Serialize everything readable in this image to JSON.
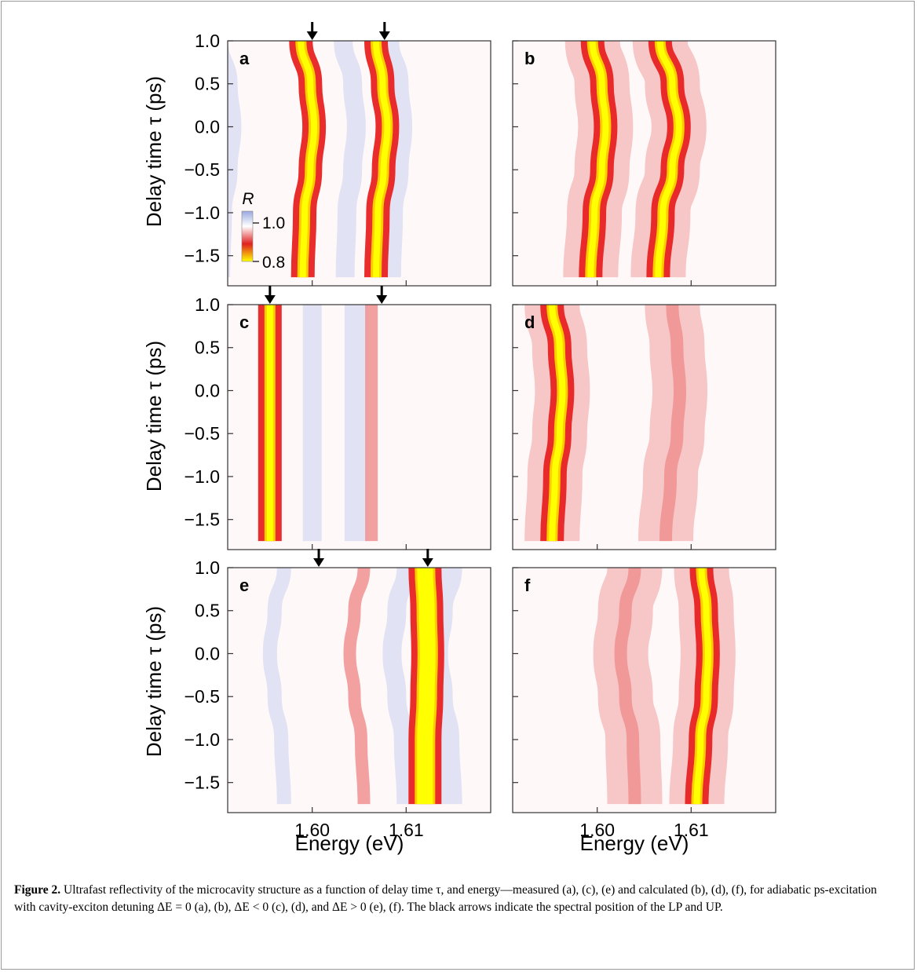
{
  "chart_data": [
    {
      "panel": "a",
      "type": "heatmap",
      "kind": "measured",
      "xlim": [
        1.591,
        1.619
      ],
      "ylim": [
        -1.85,
        1.0
      ],
      "arrows_x": [
        1.6,
        1.6077
      ],
      "series": [
        {
          "name": "LP",
          "x": [
            1.5988,
            1.5998,
            1.6002,
            1.5998,
            1.5992,
            1.599
          ]
        },
        {
          "name": "UP",
          "x": [
            1.6068,
            1.6075,
            1.608,
            1.6076,
            1.607,
            1.6068
          ]
        }
      ]
    },
    {
      "panel": "b",
      "type": "heatmap",
      "kind": "calculated",
      "xlim": [
        1.591,
        1.619
      ],
      "ylim": [
        -1.85,
        1.0
      ],
      "series": [
        {
          "name": "LP",
          "x": [
            1.5995,
            1.6005,
            1.6009,
            1.6005,
            1.5997,
            1.5993
          ]
        },
        {
          "name": "UP",
          "x": [
            1.6067,
            1.608,
            1.6087,
            1.608,
            1.607,
            1.6065
          ]
        }
      ]
    },
    {
      "panel": "c",
      "type": "heatmap",
      "kind": "measured",
      "xlim": [
        1.591,
        1.619
      ],
      "ylim": [
        -1.85,
        1.0
      ],
      "arrows_x": [
        1.5955,
        1.6074
      ],
      "series": [
        {
          "name": "LP",
          "x": [
            1.5955,
            1.5955,
            1.5955,
            1.5955,
            1.5955,
            1.5955
          ]
        },
        {
          "name": "UP",
          "x": [
            1.6063,
            1.6063,
            1.6063,
            1.6063,
            1.6063,
            1.6063
          ]
        }
      ]
    },
    {
      "panel": "d",
      "type": "heatmap",
      "kind": "calculated",
      "xlim": [
        1.591,
        1.619
      ],
      "ylim": [
        -1.85,
        1.0
      ],
      "series": [
        {
          "name": "LP",
          "x": [
            1.5952,
            1.596,
            1.5963,
            1.596,
            1.5955,
            1.5952
          ]
        },
        {
          "name": "UP",
          "x": [
            1.608,
            1.6085,
            1.6088,
            1.6085,
            1.6078,
            1.6073
          ]
        }
      ]
    },
    {
      "panel": "e",
      "type": "heatmap",
      "kind": "measured",
      "xlim": [
        1.591,
        1.619
      ],
      "ylim": [
        -1.85,
        1.0
      ],
      "arrows_x": [
        1.6007,
        1.6123
      ],
      "series": [
        {
          "name": "LP",
          "x": [
            1.6055,
            1.6045,
            1.604,
            1.6045,
            1.6052,
            1.6055
          ]
        },
        {
          "name": "UP",
          "x": [
            1.612,
            1.6122,
            1.6123,
            1.6122,
            1.612,
            1.612
          ]
        }
      ]
    },
    {
      "panel": "f",
      "type": "heatmap",
      "kind": "calculated",
      "xlim": [
        1.591,
        1.619
      ],
      "ylim": [
        -1.85,
        1.0
      ],
      "series": [
        {
          "name": "LP",
          "x": [
            1.604,
            1.603,
            1.6025,
            1.603,
            1.6038,
            1.604
          ]
        },
        {
          "name": "UP",
          "x": [
            1.6111,
            1.6116,
            1.6118,
            1.6116,
            1.611,
            1.6106
          ]
        }
      ]
    }
  ],
  "series_y": [
    1.0,
    0.5,
    0.0,
    -0.5,
    -1.0,
    -1.75
  ],
  "axes": {
    "y_label": "Delay time τ (ps)",
    "x_label": "Energy (eV)",
    "y_ticks": [
      "1.0",
      "0.5",
      "0.0",
      "−0.5",
      "−1.0",
      "−1.5"
    ],
    "y_tick_values": [
      1.0,
      0.5,
      0.0,
      -0.5,
      -1.0,
      -1.5
    ],
    "x_ticks": [
      "1.60",
      "1.61"
    ],
    "x_tick_values": [
      1.6,
      1.61
    ]
  },
  "colorbar": {
    "title": "R",
    "max_label": "1.0",
    "min_label": "0.8",
    "max": 1.0,
    "min": 0.8,
    "colors": [
      "#9aa8e0",
      "#ffffff",
      "#e02020",
      "#ffff00"
    ]
  },
  "caption": {
    "label": "Figure 2.",
    "text": "Ultrafast reflectivity of the microcavity structure as a function of delay time τ, and energy—measured (a), (c), (e) and calculated (b), (d), (f), for adiabatic ps-excitation with cavity-exciton detuning ΔE = 0 (a), (b), ΔE < 0 (c), (d), and ΔE > 0 (e), (f). The black arrows indicate the spectral position of the LP and UP."
  }
}
